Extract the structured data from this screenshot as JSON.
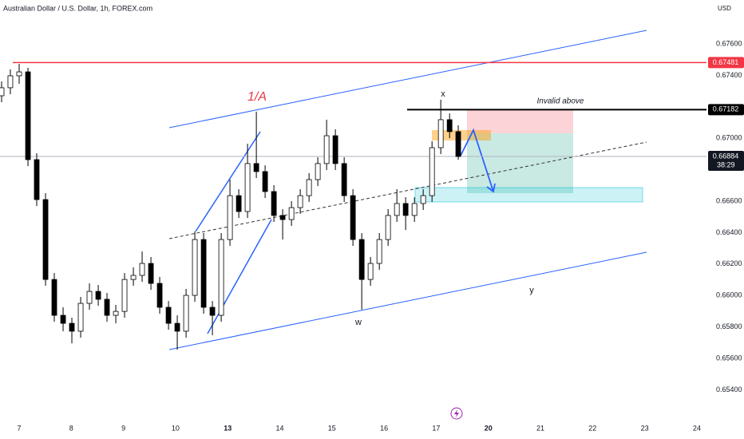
{
  "chart_data": {
    "type": "candlestick",
    "title": "Australian Dollar / U.S. Dollar, 1h, FOREX.com",
    "currency": "USD",
    "x": [
      -0.337,
      -0.169,
      0.0,
      0.169,
      0.337,
      0.506,
      0.674,
      0.843,
      1.011,
      1.18,
      1.348,
      1.517,
      1.685,
      1.854,
      2.022,
      2.191,
      2.359,
      2.528,
      2.696,
      2.865,
      3.033,
      3.202,
      3.37,
      3.539,
      3.707,
      3.876,
      4.044,
      4.213,
      4.381,
      4.55,
      4.718,
      4.887,
      5.055,
      5.224,
      5.392,
      5.561,
      5.729,
      5.898,
      6.066,
      6.235,
      6.403,
      6.572,
      6.74,
      6.909,
      7.077,
      7.246,
      7.414,
      7.583,
      7.751,
      7.92,
      8.088,
      8.257,
      8.423
    ],
    "open": [
      0.6727,
      0.67321,
      0.67397,
      0.67422,
      0.66864,
      0.6661,
      0.66102,
      0.65874,
      0.65823,
      0.65773,
      0.6595,
      0.66026,
      0.65976,
      0.65874,
      0.65899,
      0.66102,
      0.66128,
      0.66204,
      0.66077,
      0.65925,
      0.65823,
      0.65773,
      0.66001,
      0.66356,
      0.65925,
      0.65874,
      0.66356,
      0.66635,
      0.66534,
      0.66839,
      0.66788,
      0.66661,
      0.66509,
      0.66483,
      0.66559,
      0.66635,
      0.66737,
      0.66839,
      0.67016,
      0.66839,
      0.66635,
      0.66356,
      0.66102,
      0.66204,
      0.66356,
      0.66509,
      0.66585,
      0.66509,
      0.66585,
      0.66635,
      0.6694,
      0.67118,
      0.67042
    ],
    "high": [
      0.67361,
      0.67438,
      0.67473,
      0.67448,
      0.66905,
      0.66651,
      0.66143,
      0.65925,
      0.65859,
      0.65991,
      0.66077,
      0.66067,
      0.66016,
      0.6594,
      0.66143,
      0.66179,
      0.6628,
      0.66245,
      0.66118,
      0.65965,
      0.65874,
      0.66042,
      0.66407,
      0.66397,
      0.65965,
      0.66397,
      0.66737,
      0.66676,
      0.66965,
      0.67169,
      0.66828,
      0.66702,
      0.66549,
      0.666,
      0.66676,
      0.66778,
      0.66879,
      0.67118,
      0.67057,
      0.66879,
      0.66676,
      0.66397,
      0.66245,
      0.66397,
      0.66549,
      0.66676,
      0.66625,
      0.66625,
      0.66676,
      0.66981,
      0.67245,
      0.67158,
      0.67082
    ],
    "low": [
      0.67229,
      0.6728,
      0.67346,
      0.66823,
      0.66569,
      0.66062,
      0.65833,
      0.65773,
      0.65696,
      0.65732,
      0.6591,
      0.65935,
      0.65833,
      0.65823,
      0.65859,
      0.66062,
      0.66087,
      0.66036,
      0.65884,
      0.65783,
      0.65656,
      0.65732,
      0.6596,
      0.65884,
      0.65747,
      0.65833,
      0.66316,
      0.66493,
      0.66493,
      0.66747,
      0.6662,
      0.66468,
      0.66356,
      0.66443,
      0.66519,
      0.66595,
      0.66696,
      0.66798,
      0.66798,
      0.66595,
      0.66316,
      0.6591,
      0.66062,
      0.66163,
      0.66316,
      0.66468,
      0.66417,
      0.66468,
      0.66544,
      0.66595,
      0.66899,
      0.67001,
      0.66864
    ],
    "close": [
      0.67321,
      0.67397,
      0.67422,
      0.66864,
      0.6661,
      0.66102,
      0.65874,
      0.65823,
      0.65773,
      0.6595,
      0.66026,
      0.65976,
      0.65874,
      0.65899,
      0.66102,
      0.66128,
      0.66204,
      0.66077,
      0.65925,
      0.65823,
      0.65773,
      0.66001,
      0.66356,
      0.65925,
      0.65874,
      0.66356,
      0.66635,
      0.66534,
      0.66839,
      0.66788,
      0.66661,
      0.66509,
      0.66483,
      0.66559,
      0.66635,
      0.66737,
      0.66839,
      0.67016,
      0.66839,
      0.66635,
      0.66356,
      0.66102,
      0.66204,
      0.66356,
      0.66509,
      0.66585,
      0.66509,
      0.66585,
      0.66635,
      0.6694,
      0.67118,
      0.67042,
      0.66884
    ],
    "up_color": "#ffffff",
    "down_color": "#000000",
    "border_color": "#000000",
    "xlim": [
      -0.3675,
      13.185
    ],
    "xticks": [
      {
        "value": 0,
        "label": "7"
      },
      {
        "value": 1,
        "label": "8"
      },
      {
        "value": 2,
        "label": "9"
      },
      {
        "value": 3,
        "label": "10"
      },
      {
        "value": 4,
        "label": "13",
        "bold": true
      },
      {
        "value": 5,
        "label": "14"
      },
      {
        "value": 6,
        "label": "15"
      },
      {
        "value": 7,
        "label": "16"
      },
      {
        "value": 8,
        "label": "17"
      },
      {
        "value": 9,
        "label": "20",
        "bold": true
      },
      {
        "value": 10,
        "label": "21"
      },
      {
        "value": 11,
        "label": "22"
      },
      {
        "value": 12,
        "label": "23"
      },
      {
        "value": 13,
        "label": "24"
      }
    ],
    "ylim": [
      0.65316,
      0.67879
    ],
    "yticks": [
      {
        "value": 0.676,
        "label": "0.67600"
      },
      {
        "value": 0.674,
        "label": "0.67400"
      },
      {
        "value": 0.67,
        "label": "0.67000"
      },
      {
        "value": 0.666,
        "label": "0.66600"
      },
      {
        "value": 0.664,
        "label": "0.66400"
      },
      {
        "value": 0.662,
        "label": "0.66200"
      },
      {
        "value": 0.66,
        "label": "0.66000"
      },
      {
        "value": 0.658,
        "label": "0.65800"
      },
      {
        "value": 0.656,
        "label": "0.65600"
      },
      {
        "value": 0.654,
        "label": "0.65400"
      }
    ],
    "price_lines": [
      {
        "value": 0.67481,
        "label": "0.67481",
        "color": "#f23645"
      },
      {
        "value": 0.67182,
        "label": "0.67182",
        "color": "#000000"
      }
    ],
    "last_price": {
      "value": 0.66884,
      "label": "0.66884",
      "countdown": "38:29"
    },
    "annotations": {
      "wave_1a": "1/A",
      "wave_x": "x",
      "wave_w": "w",
      "wave_y": "y",
      "invalid": "Invalid above"
    }
  }
}
